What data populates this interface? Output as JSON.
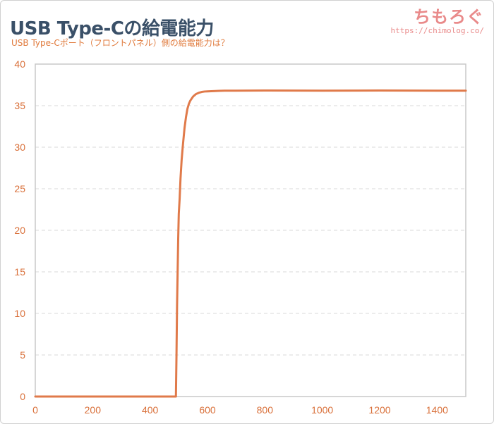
{
  "header": {
    "title": "USB Type-Cの給電能力",
    "subtitle": "USB Type-Cポート（フロントパネル）側の給電能力は？"
  },
  "brand": {
    "name": "ちもろぐ",
    "url": "https://chimolog.co/"
  },
  "colors": {
    "line": "#e07a4a",
    "grid": "#d9d9d9",
    "axis": "#c8c8c8",
    "ticks": "#d9703a",
    "title": "#3a5068"
  },
  "chart_data": {
    "type": "line",
    "title": "",
    "xlabel": "",
    "ylabel": "",
    "xlim": [
      0,
      1500
    ],
    "ylim": [
      0,
      40
    ],
    "x_ticks": [
      0,
      200,
      400,
      600,
      800,
      1000,
      1200,
      1400
    ],
    "y_ticks": [
      0,
      5,
      10,
      15,
      20,
      25,
      30,
      35,
      40
    ],
    "grid": true,
    "legend": "none",
    "series": [
      {
        "x": [
          0,
          100,
          200,
          300,
          400,
          490,
          492,
          494,
          496,
          498,
          500,
          503,
          506,
          510,
          515,
          520,
          525,
          530,
          535,
          540,
          550,
          560,
          570,
          580,
          590,
          600,
          620,
          640,
          660,
          700,
          800,
          1000,
          1200,
          1400,
          1500
        ],
        "values": [
          0,
          0,
          0,
          0,
          0,
          0,
          5,
          11,
          15,
          19,
          22,
          23.8,
          26.2,
          28.5,
          30.5,
          32.3,
          33.6,
          34.6,
          35.2,
          35.6,
          36.1,
          36.4,
          36.55,
          36.65,
          36.7,
          36.72,
          36.75,
          36.78,
          36.8,
          36.8,
          36.82,
          36.8,
          36.82,
          36.8,
          36.8
        ]
      }
    ]
  }
}
